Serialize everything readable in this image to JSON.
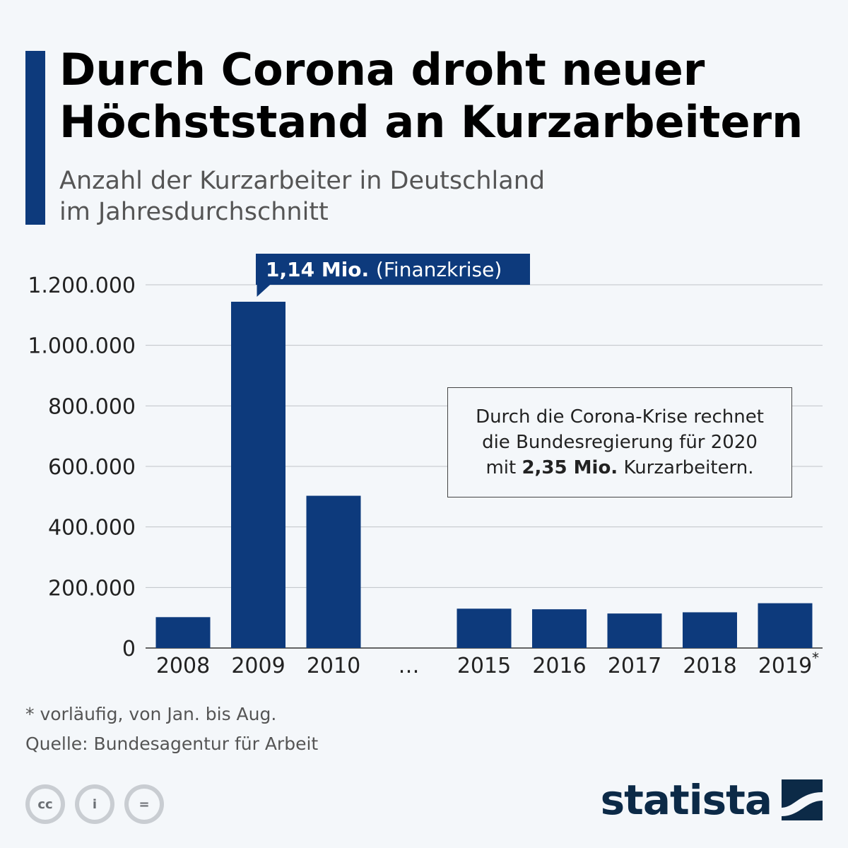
{
  "header": {
    "title_line1": "Durch Corona droht neuer",
    "title_line2": "Höchststand an Kurzarbeitern",
    "subtitle_line1": "Anzahl der Kurzarbeiter in Deutschland",
    "subtitle_line2": "im Jahresdurchschnitt"
  },
  "colors": {
    "bar": "#0d3a7c",
    "accent": "#0d3a7c",
    "grid": "#bfc3c8",
    "background": "#f4f7fa"
  },
  "chart_data": {
    "type": "bar",
    "categories": [
      "2008",
      "2009",
      "2010",
      "…",
      "2015",
      "2016",
      "2017",
      "2018",
      "2019"
    ],
    "category_markers": [
      "",
      "",
      "",
      "",
      "",
      "",
      "",
      "",
      "*"
    ],
    "values": [
      102000,
      1144000,
      503000,
      null,
      130000,
      128000,
      114000,
      118000,
      148000
    ],
    "yticks": [
      "0",
      "200.000",
      "400.000",
      "600.000",
      "800.000",
      "1.000.000",
      "1.200.000"
    ],
    "ytick_values": [
      0,
      200000,
      400000,
      600000,
      800000,
      1000000,
      1200000
    ],
    "ylim": [
      0,
      1200000
    ],
    "callout": {
      "category": "2009",
      "bold": "1,14 Mio.",
      "rest": "(Finanzkrise)"
    },
    "xlabel": "",
    "ylabel": ""
  },
  "note": {
    "line1": "Durch die Corona-Krise rechnet",
    "line2": "die Bundesregierung für 2020",
    "line3_pre": "mit",
    "line3_bold": "2,35 Mio.",
    "line3_post": "Kurzarbeitern."
  },
  "footer": {
    "footnote": "* vorläufig, von Jan. bis Aug.",
    "source": "Quelle: Bundesagentur für Arbeit",
    "brand": "statista",
    "license_icons": [
      "cc-icon",
      "attribution-icon",
      "no-derivatives-icon"
    ],
    "license_labels": [
      "cc",
      "i",
      "="
    ]
  }
}
